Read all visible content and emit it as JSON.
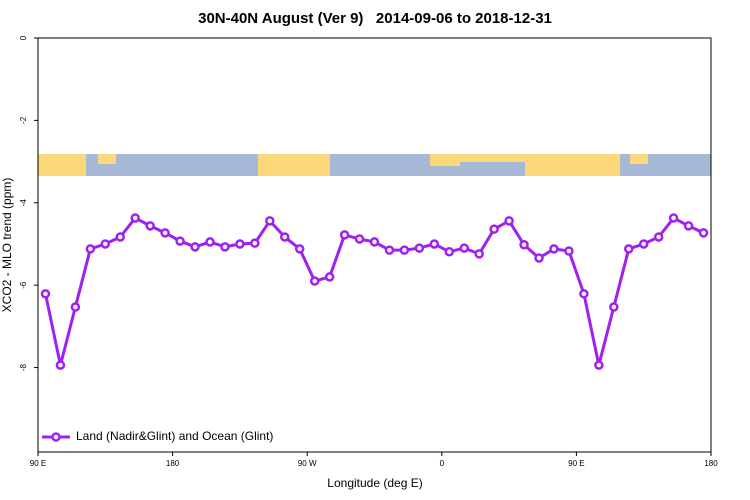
{
  "chart_data": {
    "type": "line",
    "title": "30N-40N August (Ver 9)   2014-09-06 to 2018-12-31",
    "xlabel": "Longitude (deg E)",
    "ylabel": "XCO2 - MLO trend (ppm)",
    "x": [
      95,
      105,
      115,
      125,
      135,
      145,
      155,
      165,
      175,
      185,
      195,
      205,
      215,
      225,
      235,
      245,
      255,
      265,
      275,
      285,
      295,
      305,
      315,
      325,
      335,
      345,
      355,
      365,
      375,
      385,
      395,
      405,
      415,
      425,
      435,
      445,
      455,
      465,
      475,
      485,
      495,
      505,
      515,
      525,
      535
    ],
    "series": [
      {
        "name": "Land (Nadir&Glint) and Ocean (Glint)",
        "color": "#a020f0",
        "values": [
          -6.21,
          -7.94,
          -6.53,
          -5.12,
          -5.0,
          -4.83,
          -4.37,
          -4.56,
          -4.73,
          -4.93,
          -5.07,
          -4.95,
          -5.07,
          -5.0,
          -4.98,
          -4.44,
          -4.83,
          -5.12,
          -5.9,
          -5.8,
          -4.78,
          -4.88,
          -4.95,
          -5.15,
          -5.15,
          -5.1,
          -5.0,
          -5.19,
          -5.1,
          -5.24,
          -4.64,
          -4.44,
          -5.02,
          -5.34,
          -5.12,
          -5.17,
          -6.21,
          -7.94,
          -6.53,
          -5.12,
          -5.0,
          -4.83,
          -4.37,
          -4.56,
          -4.73
        ]
      }
    ],
    "xlim": [
      90,
      540
    ],
    "xticks": [
      {
        "value": 90,
        "label": "90 E"
      },
      {
        "value": 180,
        "label": "180"
      },
      {
        "value": 270,
        "label": "90 W"
      },
      {
        "value": 360,
        "label": "0"
      },
      {
        "value": 450,
        "label": "90 E"
      },
      {
        "value": 540,
        "label": "180"
      }
    ],
    "ylim": [
      -10.05,
      0
    ],
    "yticks": [
      0,
      -2,
      -4,
      -6,
      -8
    ],
    "legend": "bottom-left"
  }
}
